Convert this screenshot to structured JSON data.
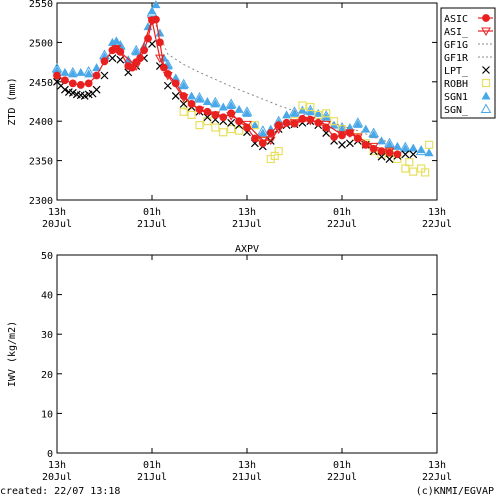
{
  "chart_data": [
    {
      "type": "scatter",
      "title": "",
      "ylabel": "ZTD (mm)",
      "ylim": [
        2300,
        2550
      ],
      "yticks": [
        2300,
        2350,
        2400,
        2450,
        2500,
        2550
      ],
      "x_ticks": [
        {
          "t": 0,
          "top": "13h",
          "bottom": "20Jul"
        },
        {
          "t": 12,
          "top": "01h",
          "bottom": "21Jul"
        },
        {
          "t": 24,
          "top": "13h",
          "bottom": "21Jul"
        },
        {
          "t": 36,
          "top": "01h",
          "bottom": "22Jul"
        },
        {
          "t": 48,
          "top": "13h",
          "bottom": "22Jul"
        }
      ],
      "x_unit": "hours since 20Jul 13h",
      "legend_position": "right",
      "series": [
        {
          "name": "ASIC",
          "color": "#e82020",
          "marker": "filled-circle",
          "line": true,
          "x": [
            0,
            1,
            2,
            3,
            4,
            5,
            6,
            7,
            7.5,
            8,
            9,
            9.5,
            10,
            10.5,
            11,
            11.5,
            12,
            12.5,
            13,
            13.5,
            14,
            15,
            16,
            17,
            18,
            19,
            20,
            21,
            22,
            23,
            24,
            25,
            26,
            27,
            28,
            29,
            30,
            31,
            32,
            33,
            34,
            35,
            36,
            37,
            38,
            39,
            40,
            41,
            42,
            43
          ],
          "y": [
            2458,
            2452,
            2448,
            2446,
            2448,
            2458,
            2476,
            2490,
            2492,
            2488,
            2470,
            2468,
            2475,
            2480,
            2490,
            2505,
            2528,
            2529,
            2500,
            2468,
            2460,
            2448,
            2432,
            2422,
            2415,
            2412,
            2408,
            2405,
            2410,
            2400,
            2392,
            2378,
            2372,
            2385,
            2395,
            2398,
            2397,
            2403,
            2402,
            2398,
            2392,
            2380,
            2382,
            2385,
            2378,
            2370,
            2365,
            2362,
            2360,
            2358
          ]
        },
        {
          "name": "ASI_",
          "color": "#e82020",
          "marker": "open-triangle-down",
          "line": true,
          "x": [
            7.5,
            10,
            12,
            13,
            14,
            16,
            18,
            20,
            22,
            24,
            26,
            27,
            28,
            30,
            32,
            34,
            36,
            37,
            38,
            40,
            42
          ],
          "y": [
            2492,
            2470,
            2528,
            2480,
            2458,
            2430,
            2414,
            2408,
            2407,
            2396,
            2376,
            2376,
            2390,
            2398,
            2401,
            2396,
            2383,
            2385,
            2380,
            2368,
            2362
          ]
        },
        {
          "name": "GF1G",
          "color": "#888888",
          "marker": "none",
          "line": "dotted",
          "x": [
            12.5,
            14,
            16,
            18,
            20,
            22,
            24,
            26,
            28,
            30,
            32,
            34,
            36,
            38,
            40,
            42
          ],
          "y": [
            2522,
            2485,
            2472,
            2462,
            2453,
            2444,
            2436,
            2428,
            2420,
            2413,
            2406,
            2400,
            2394,
            2388,
            2380,
            2373
          ]
        },
        {
          "name": "GF1R",
          "color": "#888888",
          "marker": "none",
          "line": "dotted",
          "x": [],
          "y": []
        },
        {
          "name": "LPT_",
          "color": "#000000",
          "marker": "x",
          "line": false,
          "x": [
            0,
            0.5,
            1,
            1.5,
            2,
            2.5,
            3,
            3.5,
            4,
            4.5,
            5,
            6,
            7,
            8,
            9,
            10,
            11,
            12,
            13,
            14,
            15,
            16,
            17,
            18,
            19,
            20,
            21,
            22,
            23,
            24,
            25,
            26,
            27,
            28,
            29,
            30,
            31,
            32,
            33,
            34,
            35,
            36,
            37,
            38,
            39,
            40,
            41,
            42,
            43,
            44,
            45
          ],
          "y": [
            2450,
            2445,
            2440,
            2437,
            2436,
            2434,
            2433,
            2432,
            2434,
            2435,
            2440,
            2458,
            2480,
            2478,
            2462,
            2470,
            2480,
            2498,
            2470,
            2445,
            2432,
            2422,
            2418,
            2412,
            2405,
            2402,
            2400,
            2398,
            2395,
            2386,
            2372,
            2368,
            2375,
            2390,
            2395,
            2396,
            2398,
            2400,
            2395,
            2385,
            2375,
            2370,
            2372,
            2375,
            2370,
            2362,
            2355,
            2352,
            2356,
            2358,
            2358
          ]
        },
        {
          "name": "ROBH",
          "color": "#e8e060",
          "marker": "open-square",
          "line": false,
          "x": [
            16,
            16.5,
            17,
            18,
            19,
            20,
            21,
            22,
            23,
            25,
            26,
            27,
            27.5,
            28,
            30,
            31,
            32,
            33,
            34,
            35,
            36,
            38,
            39,
            40,
            41,
            42,
            43,
            44,
            44.5,
            45,
            46,
            46.5,
            47
          ],
          "y": [
            2412,
            2420,
            2408,
            2395,
            2400,
            2392,
            2386,
            2390,
            2388,
            2395,
            2375,
            2352,
            2356,
            2362,
            2400,
            2420,
            2418,
            2408,
            2410,
            2400,
            2390,
            2380,
            2372,
            2362,
            2358,
            2360,
            2352,
            2340,
            2348,
            2336,
            2340,
            2335,
            2370
          ]
        },
        {
          "name": "SGN1",
          "color": "#4aa8e8",
          "marker": "filled-triangle",
          "line": false,
          "x": [
            0,
            1,
            2,
            3,
            4,
            5,
            6,
            7,
            7.5,
            8,
            9,
            10,
            11,
            11.5,
            12,
            12.5,
            13,
            13.5,
            14,
            15,
            16,
            17,
            18,
            19,
            20,
            21,
            22,
            23,
            24,
            25,
            26,
            27,
            28,
            29,
            30,
            31,
            32,
            33,
            34,
            35,
            36,
            37,
            38,
            39,
            40,
            41,
            42,
            43,
            44,
            45,
            46,
            47
          ],
          "y": [
            2465,
            2462,
            2460,
            2462,
            2460,
            2468,
            2482,
            2500,
            2502,
            2495,
            2478,
            2488,
            2495,
            2520,
            2540,
            2548,
            2512,
            2480,
            2470,
            2455,
            2445,
            2432,
            2428,
            2425,
            2422,
            2418,
            2420,
            2415,
            2410,
            2395,
            2385,
            2390,
            2398,
            2408,
            2410,
            2414,
            2412,
            2410,
            2405,
            2395,
            2390,
            2392,
            2396,
            2390,
            2383,
            2375,
            2370,
            2368,
            2365,
            2366,
            2364,
            2360
          ]
        },
        {
          "name": "SGN_",
          "color": "#4aa8e8",
          "marker": "open-triangle",
          "line": false,
          "x": [
            0,
            2,
            4,
            6,
            8,
            10,
            12,
            14,
            16,
            18,
            20,
            22,
            24,
            26,
            28,
            30,
            32,
            34,
            36,
            38,
            40,
            42,
            44,
            46
          ],
          "y": [
            2467,
            2462,
            2463,
            2484,
            2496,
            2490,
            2538,
            2472,
            2447,
            2430,
            2424,
            2422,
            2412,
            2388,
            2400,
            2412,
            2414,
            2407,
            2392,
            2398,
            2385,
            2372,
            2367,
            2362
          ]
        }
      ]
    },
    {
      "type": "scatter",
      "title": "AXPV",
      "ylabel": "IWV (kg/m2)",
      "ylim": [
        0,
        50
      ],
      "yticks": [
        0,
        10,
        20,
        30,
        40,
        50
      ],
      "x_ticks": [
        {
          "t": 0,
          "top": "13h",
          "bottom": "20Jul"
        },
        {
          "t": 12,
          "top": "01h",
          "bottom": "21Jul"
        },
        {
          "t": 24,
          "top": "13h",
          "bottom": "21Jul"
        },
        {
          "t": 36,
          "top": "01h",
          "bottom": "22Jul"
        },
        {
          "t": 48,
          "top": "13h",
          "bottom": "22Jul"
        }
      ],
      "x_unit": "hours since 20Jul 13h",
      "series": []
    }
  ],
  "footer": {
    "created": "created: 22/07 13:18",
    "credit": "(c)KNMI/EGVAP"
  }
}
